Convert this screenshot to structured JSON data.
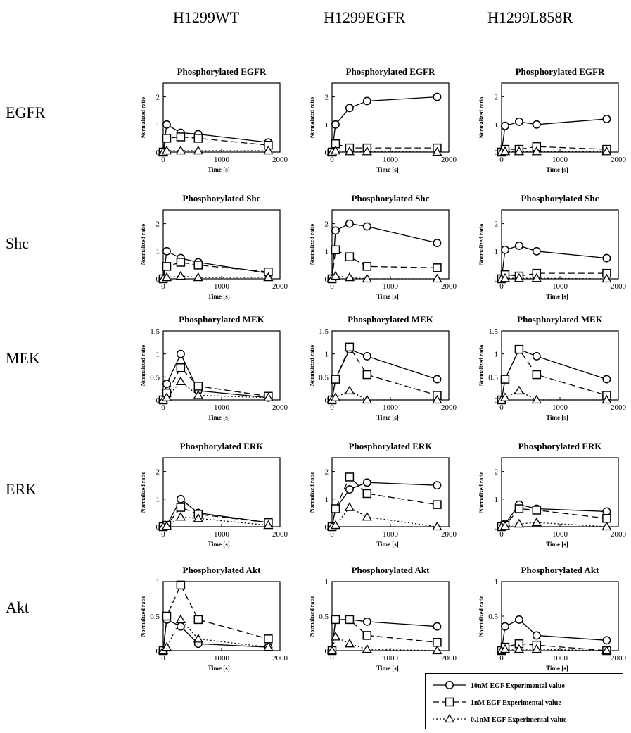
{
  "columns": [
    "H1299WT",
    "H1299EGFR",
    "H1299L858R"
  ],
  "rows": [
    "EGFR",
    "Shc",
    "MEK",
    "ERK",
    "Akt"
  ],
  "axis": {
    "xlabel": "Time [s]",
    "ylabel": "Normalized ratio"
  },
  "legend": [
    {
      "label": "10nM EGF Experimental value",
      "marker": "circle",
      "dash": "solid"
    },
    {
      "label": "1nM EGF Experimental value",
      "marker": "square",
      "dash": "dashed"
    },
    {
      "label": "0.1nM EGF Experimental value",
      "marker": "triangle",
      "dash": "dotted"
    }
  ],
  "chart_data": [
    {
      "type": "line",
      "row": 0,
      "col": 0,
      "title": "Phosphorylated EGFR",
      "xlabel": "Time [s]",
      "ylabel": "Normalized ratio",
      "xlim": [
        0,
        2000
      ],
      "ylim": [
        0,
        2.5
      ],
      "xticks": [
        0,
        1000,
        2000
      ],
      "yticks": [
        0,
        1,
        2
      ],
      "x": [
        0,
        60,
        300,
        600,
        1800
      ],
      "series": [
        {
          "name": "10nM EGF Experimental value",
          "values": [
            0,
            1.0,
            0.7,
            0.65,
            0.35
          ]
        },
        {
          "name": "1nM EGF Experimental value",
          "values": [
            0,
            0.5,
            0.55,
            0.5,
            0.25
          ]
        },
        {
          "name": "0.1nM EGF Experimental value",
          "values": [
            0,
            0.05,
            0.05,
            0.05,
            0.05
          ]
        }
      ]
    },
    {
      "type": "line",
      "row": 0,
      "col": 1,
      "title": "Phosphorylated EGFR",
      "xlabel": "Time [s]",
      "ylabel": "Normalized ratio",
      "xlim": [
        0,
        2000
      ],
      "ylim": [
        0,
        2.5
      ],
      "xticks": [
        0,
        1000,
        2000
      ],
      "yticks": [
        0,
        1,
        2
      ],
      "x": [
        0,
        60,
        300,
        600,
        1800
      ],
      "series": [
        {
          "name": "10nM EGF Experimental value",
          "values": [
            0,
            1.0,
            1.6,
            1.85,
            2.0
          ]
        },
        {
          "name": "1nM EGF Experimental value",
          "values": [
            0,
            0.3,
            0.15,
            0.15,
            0.15
          ]
        },
        {
          "name": "0.1nM EGF Experimental value",
          "values": [
            0,
            0.05,
            0.02,
            0.02,
            0.0
          ]
        }
      ]
    },
    {
      "type": "line",
      "row": 0,
      "col": 2,
      "title": "Phosphorylated EGFR",
      "xlabel": "Time [s]",
      "ylabel": "Normalized ratio",
      "xlim": [
        0,
        2000
      ],
      "ylim": [
        0,
        2.5
      ],
      "xticks": [
        0,
        1000,
        2000
      ],
      "yticks": [
        0,
        1,
        2
      ],
      "x": [
        0,
        60,
        300,
        600,
        1800
      ],
      "series": [
        {
          "name": "10nM EGF Experimental value",
          "values": [
            0,
            0.95,
            1.1,
            1.0,
            1.2
          ]
        },
        {
          "name": "1nM EGF Experimental value",
          "values": [
            0,
            0.1,
            0.1,
            0.2,
            0.1
          ]
        },
        {
          "name": "0.1nM EGF Experimental value",
          "values": [
            0,
            0.02,
            0.02,
            0.02,
            0.02
          ]
        }
      ]
    },
    {
      "type": "line",
      "row": 1,
      "col": 0,
      "title": "Phosphorylated Shc",
      "xlabel": "Time [s]",
      "ylabel": "Normalized ratio",
      "xlim": [
        0,
        2000
      ],
      "ylim": [
        0,
        2.5
      ],
      "xticks": [
        0,
        1000,
        2000
      ],
      "yticks": [
        0,
        1,
        2
      ],
      "x": [
        0,
        60,
        300,
        600,
        1800
      ],
      "series": [
        {
          "name": "10nM EGF Experimental value",
          "values": [
            0,
            1.0,
            0.75,
            0.6,
            0.2
          ]
        },
        {
          "name": "1nM EGF Experimental value",
          "values": [
            0,
            0.45,
            0.6,
            0.5,
            0.25
          ]
        },
        {
          "name": "0.1nM EGF Experimental value",
          "values": [
            0,
            0.05,
            0.1,
            0.05,
            0.05
          ]
        }
      ]
    },
    {
      "type": "line",
      "row": 1,
      "col": 1,
      "title": "Phosphorylated Shc",
      "xlabel": "Time [s]",
      "ylabel": "Normalized ratio",
      "xlim": [
        0,
        2000
      ],
      "ylim": [
        0,
        2.5
      ],
      "xticks": [
        0,
        1000,
        2000
      ],
      "yticks": [
        0,
        1,
        2
      ],
      "x": [
        0,
        60,
        300,
        600,
        1800
      ],
      "series": [
        {
          "name": "10nM EGF Experimental value",
          "values": [
            0,
            1.75,
            2.0,
            1.9,
            1.3
          ]
        },
        {
          "name": "1nM EGF Experimental value",
          "values": [
            0,
            1.05,
            0.8,
            0.45,
            0.4
          ]
        },
        {
          "name": "0.1nM EGF Experimental value",
          "values": [
            0,
            0.1,
            0.05,
            0.0,
            0.0
          ]
        }
      ]
    },
    {
      "type": "line",
      "row": 1,
      "col": 2,
      "title": "Phosphorylated Shc",
      "xlabel": "Time [s]",
      "ylabel": "Normalized ratio",
      "xlim": [
        0,
        2000
      ],
      "ylim": [
        0,
        2.5
      ],
      "xticks": [
        0,
        1000,
        2000
      ],
      "yticks": [
        0,
        1,
        2
      ],
      "x": [
        0,
        60,
        300,
        600,
        1800
      ],
      "series": [
        {
          "name": "10nM EGF Experimental value",
          "values": [
            0,
            1.05,
            1.2,
            1.0,
            0.75
          ]
        },
        {
          "name": "1nM EGF Experimental value",
          "values": [
            0,
            0.15,
            0.1,
            0.2,
            0.2
          ]
        },
        {
          "name": "0.1nM EGF Experimental value",
          "values": [
            0,
            0.02,
            0.02,
            0.02,
            0.0
          ]
        }
      ]
    },
    {
      "type": "line",
      "row": 2,
      "col": 0,
      "title": "Phosphorylated MEK",
      "xlabel": "Time [s]",
      "ylabel": "Normalized ratio",
      "xlim": [
        0,
        2000
      ],
      "ylim": [
        0,
        1.5
      ],
      "xticks": [
        0,
        1000,
        2000
      ],
      "yticks": [
        0,
        0.5,
        1,
        1.5
      ],
      "x": [
        0,
        60,
        300,
        600,
        1800
      ],
      "series": [
        {
          "name": "10nM EGF Experimental value",
          "values": [
            0,
            0.35,
            1.0,
            0.2,
            0.05
          ]
        },
        {
          "name": "1nM EGF Experimental value",
          "values": [
            0,
            0.15,
            0.7,
            0.3,
            0.08
          ]
        },
        {
          "name": "0.1nM EGF Experimental value",
          "values": [
            0,
            0.05,
            0.4,
            0.1,
            0.05
          ]
        }
      ]
    },
    {
      "type": "line",
      "row": 2,
      "col": 1,
      "title": "Phosphorylated MEK",
      "xlabel": "Time [s]",
      "ylabel": "Normalized ratio",
      "xlim": [
        0,
        2000
      ],
      "ylim": [
        0,
        1.5
      ],
      "xticks": [
        0,
        1000,
        2000
      ],
      "yticks": [
        0,
        0.5,
        1,
        1.5
      ],
      "x": [
        0,
        60,
        300,
        600,
        1800
      ],
      "series": [
        {
          "name": "10nM EGF Experimental value",
          "values": [
            0,
            0.45,
            1.1,
            0.95,
            0.45
          ]
        },
        {
          "name": "1nM EGF Experimental value",
          "values": [
            0,
            0.45,
            1.15,
            0.55,
            0.1
          ]
        },
        {
          "name": "0.1nM EGF Experimental value",
          "values": [
            0,
            0.05,
            0.2,
            0.0,
            0.0
          ]
        }
      ]
    },
    {
      "type": "line",
      "row": 2,
      "col": 2,
      "title": "Phosphorylated MEK",
      "xlabel": "Time [s]",
      "ylabel": "Normalized ratio",
      "xlim": [
        0,
        2000
      ],
      "ylim": [
        0,
        1.5
      ],
      "xticks": [
        0,
        1000,
        2000
      ],
      "yticks": [
        0,
        0.5,
        1,
        1.5
      ],
      "x": [
        0,
        60,
        300,
        600,
        1800
      ],
      "series": [
        {
          "name": "10nM EGF Experimental value",
          "values": [
            0,
            0.45,
            1.1,
            0.95,
            0.45
          ]
        },
        {
          "name": "1nM EGF Experimental value",
          "values": [
            0,
            0.45,
            1.1,
            0.55,
            0.1
          ]
        },
        {
          "name": "0.1nM EGF Experimental value",
          "values": [
            0,
            0.05,
            0.2,
            0.0,
            0.0
          ]
        }
      ]
    },
    {
      "type": "line",
      "row": 3,
      "col": 0,
      "title": "Phosphorylated ERK",
      "xlabel": "Time [s]",
      "ylabel": "Normalized ratio",
      "xlim": [
        0,
        2000
      ],
      "ylim": [
        0,
        2.5
      ],
      "xticks": [
        0,
        1000,
        2000
      ],
      "yticks": [
        0,
        1,
        2
      ],
      "x": [
        0,
        60,
        300,
        600,
        1800
      ],
      "series": [
        {
          "name": "10nM EGF Experimental value",
          "values": [
            0,
            0.05,
            1.0,
            0.5,
            0.15
          ]
        },
        {
          "name": "1nM EGF Experimental value",
          "values": [
            0,
            0.05,
            0.7,
            0.45,
            0.15
          ]
        },
        {
          "name": "0.1nM EGF Experimental value",
          "values": [
            0,
            0.02,
            0.35,
            0.3,
            0.05
          ]
        }
      ]
    },
    {
      "type": "line",
      "row": 3,
      "col": 1,
      "title": "Phosphorylated ERK",
      "xlabel": "Time [s]",
      "ylabel": "Normalized ratio",
      "xlim": [
        0,
        2000
      ],
      "ylim": [
        0,
        2.5
      ],
      "xticks": [
        0,
        1000,
        2000
      ],
      "yticks": [
        0,
        1,
        2
      ],
      "x": [
        0,
        60,
        300,
        600,
        1800
      ],
      "series": [
        {
          "name": "10nM EGF Experimental value",
          "values": [
            0,
            0.65,
            1.35,
            1.6,
            1.5
          ]
        },
        {
          "name": "1nM EGF Experimental value",
          "values": [
            0,
            0.65,
            1.8,
            1.2,
            0.8
          ]
        },
        {
          "name": "0.1nM EGF Experimental value",
          "values": [
            0,
            0.05,
            0.7,
            0.35,
            0.0
          ]
        }
      ]
    },
    {
      "type": "line",
      "row": 3,
      "col": 2,
      "title": "Phosphorylated ERK",
      "xlabel": "Time [s]",
      "ylabel": "Normalized ratio",
      "xlim": [
        0,
        2000
      ],
      "ylim": [
        0,
        2.5
      ],
      "xticks": [
        0,
        1000,
        2000
      ],
      "yticks": [
        0,
        1,
        2
      ],
      "x": [
        0,
        60,
        300,
        600,
        1800
      ],
      "series": [
        {
          "name": "10nM EGF Experimental value",
          "values": [
            0,
            0.1,
            0.8,
            0.65,
            0.55
          ]
        },
        {
          "name": "1nM EGF Experimental value",
          "values": [
            0,
            0.05,
            0.65,
            0.6,
            0.3
          ]
        },
        {
          "name": "0.1nM EGF Experimental value",
          "values": [
            0,
            0.02,
            0.1,
            0.15,
            0.0
          ]
        }
      ]
    },
    {
      "type": "line",
      "row": 4,
      "col": 0,
      "title": "Phosphorylated Akt",
      "xlabel": "Time [s]",
      "ylabel": "Normalized ratio",
      "xlim": [
        0,
        2000
      ],
      "ylim": [
        0,
        1
      ],
      "xticks": [
        0,
        1000,
        2000
      ],
      "yticks": [
        0,
        0.5,
        1
      ],
      "x": [
        0,
        60,
        300,
        600,
        1800
      ],
      "series": [
        {
          "name": "10nM EGF Experimental value",
          "values": [
            0,
            0.45,
            0.35,
            0.1,
            0.05
          ]
        },
        {
          "name": "1nM EGF Experimental value",
          "values": [
            0,
            0.5,
            0.95,
            0.45,
            0.17
          ]
        },
        {
          "name": "0.1nM EGF Experimental value",
          "values": [
            0,
            0.05,
            0.45,
            0.17,
            0.05
          ]
        }
      ]
    },
    {
      "type": "line",
      "row": 4,
      "col": 1,
      "title": "Phosphorylated Akt",
      "xlabel": "Time [s]",
      "ylabel": "Normalized ratio",
      "xlim": [
        0,
        2000
      ],
      "ylim": [
        0,
        1
      ],
      "xticks": [
        0,
        1000,
        2000
      ],
      "yticks": [
        0,
        0.5,
        1
      ],
      "x": [
        0,
        60,
        300,
        600,
        1800
      ],
      "series": [
        {
          "name": "10nM EGF Experimental value",
          "values": [
            0,
            0.45,
            0.45,
            0.42,
            0.35
          ]
        },
        {
          "name": "1nM EGF Experimental value",
          "values": [
            0,
            0.45,
            0.45,
            0.22,
            0.12
          ]
        },
        {
          "name": "0.1nM EGF Experimental value",
          "values": [
            0,
            0.2,
            0.1,
            0.02,
            0.0
          ]
        }
      ]
    },
    {
      "type": "line",
      "row": 4,
      "col": 2,
      "title": "Phosphorylated Akt",
      "xlabel": "Time [s]",
      "ylabel": "Normalized ratio",
      "xlim": [
        0,
        2000
      ],
      "ylim": [
        0,
        1
      ],
      "xticks": [
        0,
        1000,
        2000
      ],
      "yticks": [
        0,
        0.5,
        1
      ],
      "x": [
        0,
        60,
        300,
        600,
        1800
      ],
      "series": [
        {
          "name": "10nM EGF Experimental value",
          "values": [
            0,
            0.35,
            0.45,
            0.22,
            0.15
          ]
        },
        {
          "name": "1nM EGF Experimental value",
          "values": [
            0,
            0.05,
            0.1,
            0.08,
            0.0
          ]
        },
        {
          "name": "0.1nM EGF Experimental value",
          "values": [
            0,
            0.02,
            0.02,
            0.02,
            0.0
          ]
        }
      ]
    }
  ]
}
